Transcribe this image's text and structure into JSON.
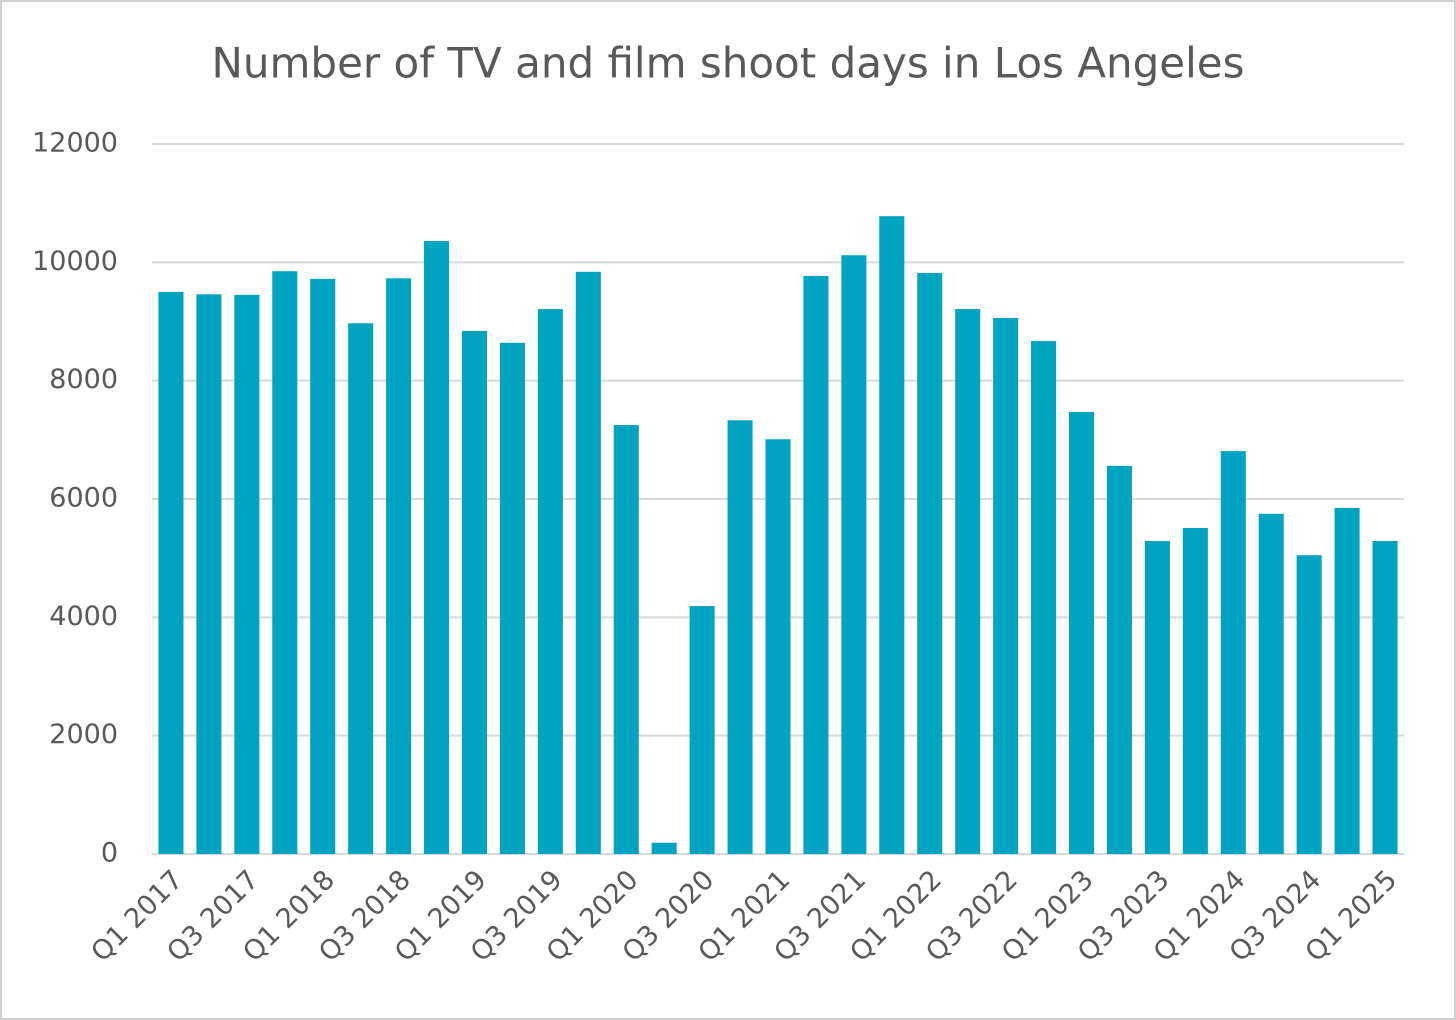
{
  "chart_data": {
    "type": "bar",
    "title": "Number of TV and film shoot days in Los Angeles",
    "categories": [
      "Q1 2017",
      null,
      "Q3 2017",
      null,
      "Q1 2018",
      null,
      "Q3 2018",
      null,
      "Q1 2019",
      null,
      "Q3 2019",
      null,
      "Q1 2020",
      null,
      "Q3 2020",
      null,
      "Q1 2021",
      null,
      "Q3 2021",
      null,
      "Q1 2022",
      null,
      "Q3 2022",
      null,
      "Q1 2023",
      null,
      "Q3 2023",
      null,
      "Q1 2024",
      null,
      "Q3 2024",
      null,
      "Q1 2025"
    ],
    "values": [
      9500,
      9460,
      9450,
      9850,
      9720,
      8970,
      9730,
      10360,
      8840,
      8640,
      9210,
      9840,
      7250,
      190,
      4190,
      7330,
      7010,
      9770,
      10120,
      10780,
      9820,
      9210,
      9060,
      8670,
      7470,
      6560,
      5290,
      5510,
      6810,
      5750,
      5050,
      5850,
      5290
    ],
    "color": "#00a3c0",
    "ylim": [
      0,
      12000
    ],
    "yticks": [
      0,
      2000,
      4000,
      6000,
      8000,
      10000,
      12000
    ],
    "grid": true
  }
}
